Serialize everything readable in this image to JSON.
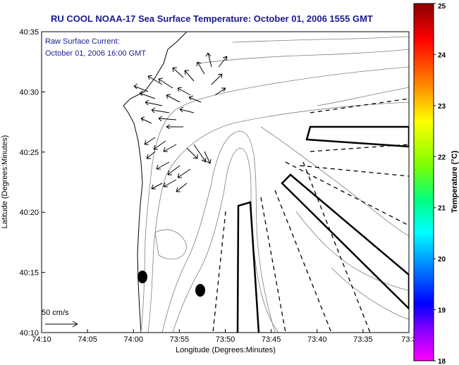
{
  "chart_data": {
    "type": "map",
    "title": "RU COOL  NOAA-17  Sea Surface Temperature:  October 01, 2006 1555 GMT",
    "xlabel": "Longitude (Degrees:Minutes)",
    "ylabel": "Latitude (Degrees:Minutes)",
    "x_ticks": [
      "74:10",
      "74:05",
      "74:00",
      "73:55",
      "73:50",
      "73:45",
      "73:40",
      "73:35",
      "73:3"
    ],
    "y_ticks": [
      "40:35",
      "40:30",
      "40:25",
      "40:20",
      "40:15",
      "40:10"
    ],
    "colorbar": {
      "label": "Temperature (°C)",
      "min": 18,
      "max": 25,
      "ticks": [
        "25",
        "24",
        "23",
        "22",
        "21",
        "20",
        "19",
        "18"
      ],
      "colors_top_to_bottom": [
        "#8b0000",
        "#ff0000",
        "#ff8000",
        "#ffff00",
        "#80ff00",
        "#00ff80",
        "#00ffff",
        "#0080ff",
        "#0000ff",
        "#8000ff",
        "#ff00ff"
      ]
    },
    "overlay_text": {
      "raw_current_line1": "Raw Surface Current:",
      "raw_current_line2": "October 01, 2006 16:00 GMT"
    },
    "scale_label": "50 cm/s",
    "markers": [
      "filled-ellipse",
      "filled-ellipse"
    ]
  }
}
